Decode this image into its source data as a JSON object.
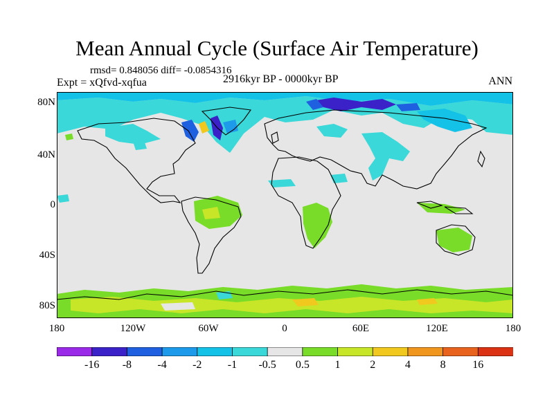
{
  "title": "Mean Annual Cycle (Surface Air Temperature)",
  "stats": "rmsd= 0.848056 diff= -0.0854316",
  "expt": "Expt = xQfvd-xqfua",
  "period": "2916kyr BP - 0000kyr BP",
  "season": "ANN",
  "lat_labels": [
    "80N",
    "40N",
    "0",
    "40S",
    "80S"
  ],
  "lon_labels": [
    "180",
    "120W",
    "60W",
    "0",
    "60E",
    "120E",
    "180"
  ],
  "colorbar": {
    "labels": [
      "-16",
      "-8",
      "-4",
      "-2",
      "-1",
      "-0.5",
      "0.5",
      "1",
      "2",
      "4",
      "8",
      "16"
    ],
    "colors": [
      "#9a2ae8",
      "#3a22c8",
      "#1e60e0",
      "#1e9aea",
      "#14c2e8",
      "#3ad8d8",
      "#e6e6e6",
      "#78dc28",
      "#c8e628",
      "#f0c81e",
      "#f0961e",
      "#e8641e",
      "#dc3214"
    ]
  },
  "colors": {
    "land_outline": "#000000",
    "neutral": "#e6e6e6"
  }
}
